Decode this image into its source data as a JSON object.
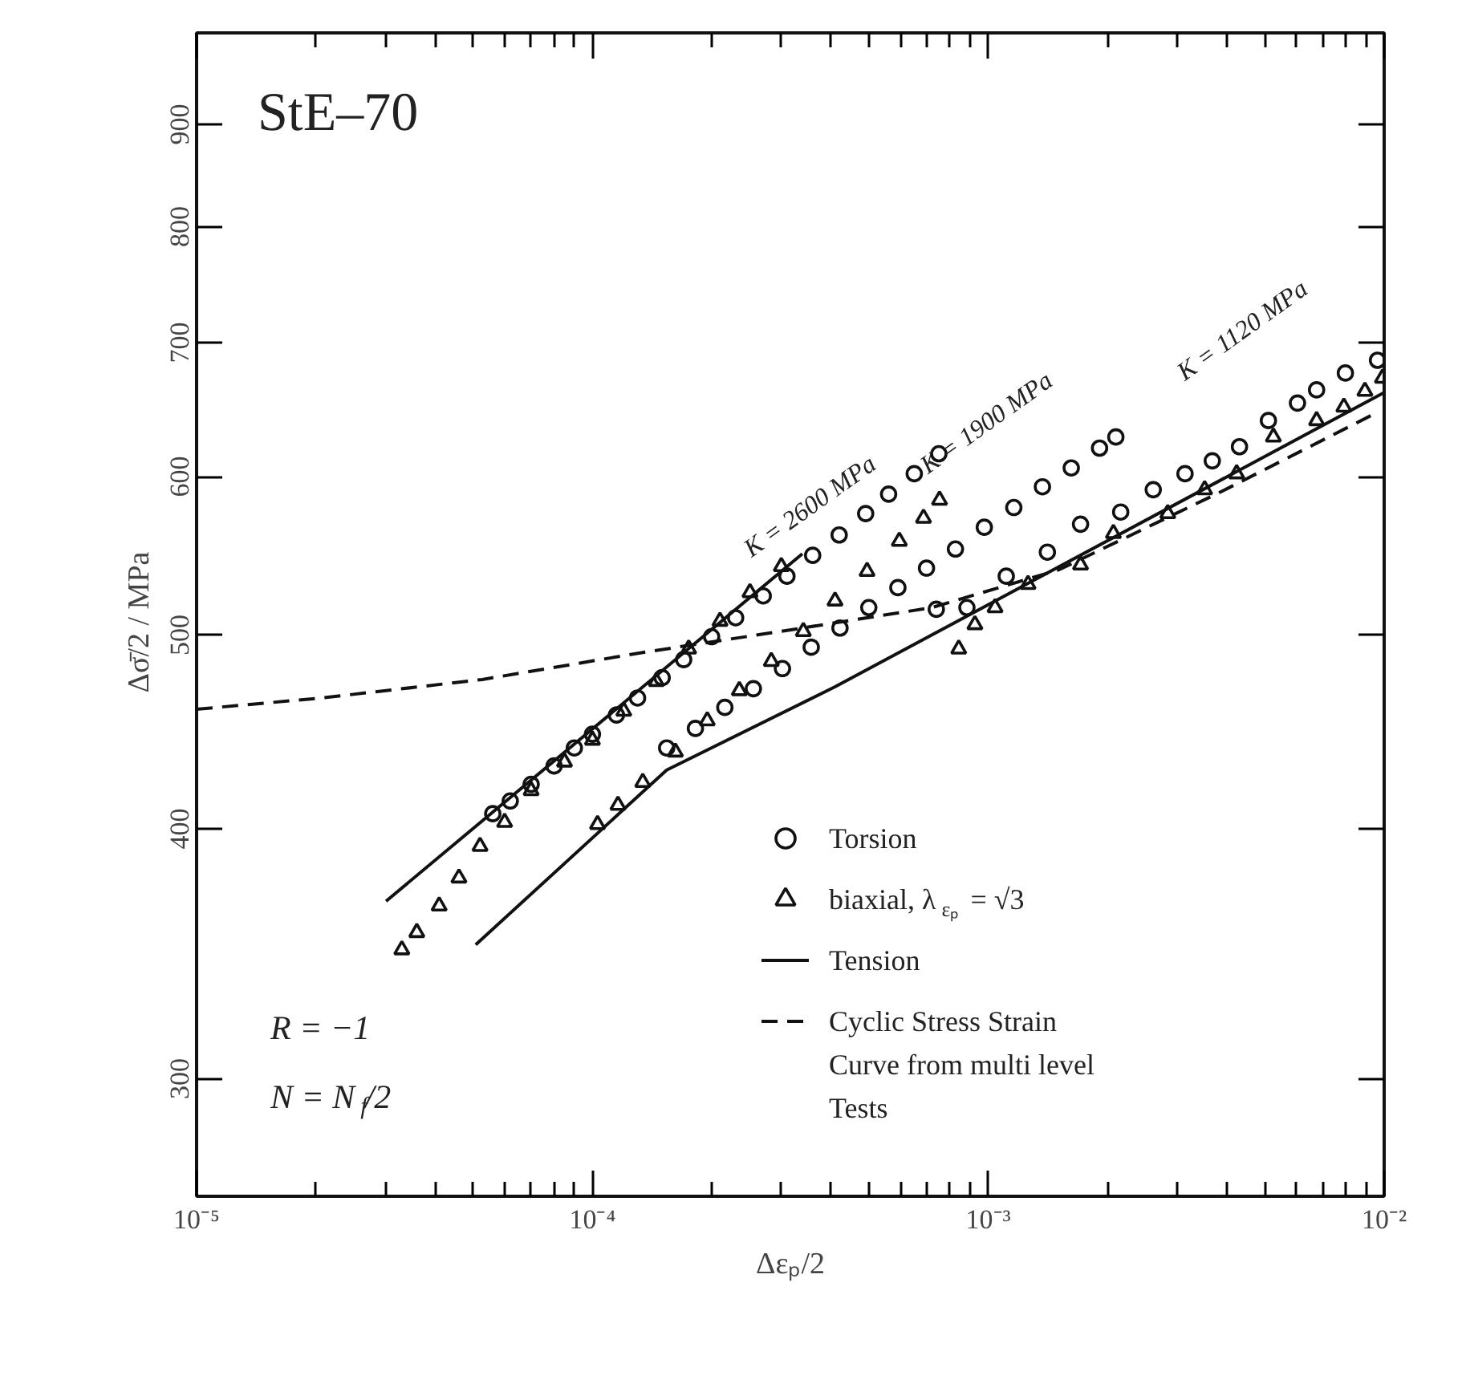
{
  "chart_data": {
    "type": "scatter",
    "xlabel": "Δεₚ/2",
    "ylabel": "Δσ̄/2  /  MPa",
    "log": "xy",
    "grid": false,
    "legend": "bottom right",
    "xlim": [
      1e-05,
      0.01
    ],
    "ylim": [
      262,
      1000
    ],
    "xticks": [
      {
        "value": 1e-05,
        "label": "10⁻⁵"
      },
      {
        "value": 2e-05,
        "label": null
      },
      {
        "value": 3e-05,
        "label": null
      },
      {
        "value": 4e-05,
        "label": null
      },
      {
        "value": 5e-05,
        "label": null
      },
      {
        "value": 6e-05,
        "label": null
      },
      {
        "value": 7e-05,
        "label": null
      },
      {
        "value": 8e-05,
        "label": null
      },
      {
        "value": 9e-05,
        "label": null
      },
      {
        "value": 0.0001,
        "label": "10⁻⁴"
      },
      {
        "value": 0.0002,
        "label": null
      },
      {
        "value": 0.0003,
        "label": null
      },
      {
        "value": 0.0004,
        "label": null
      },
      {
        "value": 0.0005,
        "label": null
      },
      {
        "value": 0.0006,
        "label": null
      },
      {
        "value": 0.0007,
        "label": null
      },
      {
        "value": 0.0008,
        "label": null
      },
      {
        "value": 0.0009,
        "label": null
      },
      {
        "value": 0.001,
        "label": "10⁻³"
      },
      {
        "value": 0.002,
        "label": null
      },
      {
        "value": 0.003,
        "label": null
      },
      {
        "value": 0.004,
        "label": null
      },
      {
        "value": 0.005,
        "label": null
      },
      {
        "value": 0.006,
        "label": null
      },
      {
        "value": 0.007,
        "label": null
      },
      {
        "value": 0.008,
        "label": null
      },
      {
        "value": 0.009,
        "label": null
      },
      {
        "value": 0.01,
        "label": "10⁻²"
      }
    ],
    "yticks": [
      300,
      400,
      500,
      600,
      700,
      800,
      900
    ],
    "series": [
      {
        "name": "Torsion",
        "marker": "circle",
        "color": "#111111",
        "x": [
          5.6e-05,
          6.2e-05,
          7e-05,
          8e-05,
          9e-05,
          0.0001,
          0.000115,
          0.00013,
          0.00015,
          0.00017,
          0.0002,
          0.00023,
          0.00027,
          0.00031,
          0.00036,
          0.00042,
          0.00049,
          0.00056,
          0.00065,
          0.00075,
          0.000154,
          0.000182,
          0.000216,
          0.000255,
          0.000302,
          0.000357,
          0.000422,
          0.000499,
          0.000591,
          0.000698,
          0.000826,
          0.000977,
          0.00116,
          0.00137,
          0.00162,
          0.00191,
          0.0021,
          0.000739,
          0.000883,
          0.00111,
          0.00141,
          0.00171,
          0.00216,
          0.00261,
          0.00314,
          0.00368,
          0.00431,
          0.0051,
          0.00604,
          0.00675,
          0.00798,
          0.00962
        ],
        "values": [
          407,
          413,
          421,
          430,
          439,
          446,
          456,
          465,
          476,
          486,
          499,
          510,
          523,
          535,
          548,
          561,
          575,
          588,
          602,
          616,
          439,
          449,
          460,
          470,
          481,
          493,
          504,
          516,
          528,
          540,
          552,
          566,
          579,
          593,
          606,
          620,
          628,
          515,
          516,
          535,
          550,
          568,
          576,
          591,
          602,
          611,
          621,
          640,
          653,
          663,
          676,
          686
        ]
      },
      {
        "name": "biaxial, λ$_{εₚ}$ = √3",
        "marker": "triangle",
        "color": "#111111",
        "x": [
          3.3e-05,
          3.6e-05,
          4.1e-05,
          4.6e-05,
          5.2e-05,
          6e-05,
          7e-05,
          8.5e-05,
          0.0001,
          0.00012,
          0.000145,
          0.000175,
          0.00021,
          0.00025,
          0.0003,
          0.000103,
          0.000116,
          0.000134,
          0.000162,
          0.000195,
          0.000235,
          0.000283,
          0.000341,
          0.00041,
          0.000494,
          0.000596,
          0.000686,
          0.000753,
          0.000842,
          0.000925,
          0.00104,
          0.00126,
          0.00171,
          0.00207,
          0.00284,
          0.00352,
          0.00424,
          0.00525,
          0.00675,
          0.00791,
          0.00894,
          0.0099
        ],
        "values": [
          348,
          355,
          366,
          378,
          392,
          403,
          418,
          432,
          443,
          458,
          474,
          492,
          508,
          525,
          541,
          402,
          411,
          422,
          437,
          453,
          469,
          485,
          502,
          520,
          538,
          557,
          572,
          584,
          492,
          506,
          516,
          530,
          542,
          562,
          575,
          591,
          602,
          628,
          640,
          650,
          662,
          672
        ]
      },
      {
        "name": "Tension",
        "type": "line",
        "line_style": "solid",
        "color": "#111111",
        "x": [
          5.07e-05,
          0.000154,
          0.00041,
          0.01
        ],
        "values": [
          350,
          428,
          471,
          661
        ]
      },
      {
        "type": "line",
        "line_style": "solid",
        "color": "#111111",
        "x": [
          3.01e-05,
          0.000339
        ],
        "values": [
          368,
          549
        ]
      },
      {
        "name": "Cyclic Stress Strain Curve from multi level Tests",
        "type": "line",
        "line_style": "dashed",
        "color": "#111111",
        "x": [
          1e-05,
          2.07e-05,
          5.27e-05,
          0.000134,
          0.000339,
          0.00072,
          0.00151,
          0.00383,
          0.0096
        ],
        "values": [
          459,
          465,
          475,
          490,
          504,
          516,
          539,
          589,
          646
        ]
      }
    ],
    "annotations": [
      "StE–70",
      "R = −1",
      "N = N$_{f}$/2",
      "K = 2600 MPa",
      "K = 1900 MPa",
      "K = 1120 MPa"
    ]
  }
}
